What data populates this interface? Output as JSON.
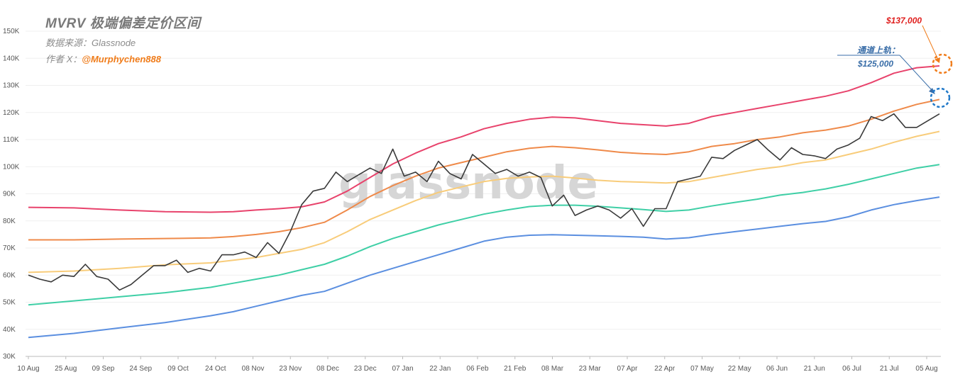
{
  "header": {
    "title": "MVRV 极端偏差定价区间",
    "source_label": "数据来源：Glassnode",
    "author_prefix": "作者 X：",
    "author_handle": "@Murphychen888"
  },
  "watermark": "glassnode",
  "annotations": {
    "upper_target": "$137,000",
    "channel_label": "通道上轨：",
    "channel_value": "$125,000"
  },
  "colors": {
    "price": "#3a3a3a",
    "band_top": "#e8436c",
    "band_upper": "#ef8a4a",
    "band_mid": "#f8cc7a",
    "band_lower": "#3fcfa6",
    "band_bottom": "#5b8fe0",
    "ring_orange": "#f07c1a",
    "ring_blue": "#1f78c8",
    "annotation_red": "#e0201f",
    "annotation_blue": "#3a6ea8"
  },
  "chart_data": {
    "type": "line",
    "y_ticks": [
      "30K",
      "40K",
      "50K",
      "60K",
      "70K",
      "80K",
      "90K",
      "100K",
      "110K",
      "120K",
      "130K",
      "140K",
      "150K"
    ],
    "x_ticks": [
      "10 Aug",
      "25 Aug",
      "09 Sep",
      "24 Sep",
      "09 Oct",
      "24 Oct",
      "08 Nov",
      "23 Nov",
      "08 Dec",
      "23 Dec",
      "07 Jan",
      "22 Jan",
      "06 Feb",
      "21 Feb",
      "08 Mar",
      "23 Mar",
      "07 Apr",
      "22 Apr",
      "07 May",
      "22 May",
      "06 Jun",
      "21 Jun",
      "06 Jul",
      "21 Jul",
      "05 Aug"
    ],
    "ylim": [
      30000,
      150000
    ],
    "grid": true,
    "series": [
      {
        "name": "band_top",
        "color_key": "band_top",
        "points": [
          [
            0,
            85000
          ],
          [
            2,
            84800
          ],
          [
            4,
            84000
          ],
          [
            6,
            83400
          ],
          [
            8,
            83200
          ],
          [
            9,
            83400
          ],
          [
            10,
            84000
          ],
          [
            11,
            84500
          ],
          [
            12,
            85200
          ],
          [
            13,
            87000
          ],
          [
            14,
            91000
          ],
          [
            15,
            96000
          ],
          [
            16,
            101000
          ],
          [
            17,
            105000
          ],
          [
            18,
            108500
          ],
          [
            19,
            111000
          ],
          [
            20,
            114000
          ],
          [
            21,
            116000
          ],
          [
            22,
            117500
          ],
          [
            23,
            118300
          ],
          [
            24,
            118000
          ],
          [
            25,
            117000
          ],
          [
            26,
            116000
          ],
          [
            27,
            115500
          ],
          [
            28,
            115000
          ],
          [
            29,
            116000
          ],
          [
            30,
            118500
          ],
          [
            31,
            120000
          ],
          [
            32,
            121500
          ],
          [
            33,
            123000
          ],
          [
            34,
            124500
          ],
          [
            35,
            126000
          ],
          [
            36,
            128000
          ],
          [
            37,
            131000
          ],
          [
            38,
            134500
          ],
          [
            39,
            136500
          ],
          [
            40,
            137200
          ]
        ]
      },
      {
        "name": "band_upper",
        "color_key": "band_upper",
        "points": [
          [
            0,
            73000
          ],
          [
            2,
            73000
          ],
          [
            4,
            73300
          ],
          [
            6,
            73500
          ],
          [
            8,
            73700
          ],
          [
            9,
            74200
          ],
          [
            10,
            75000
          ],
          [
            11,
            76000
          ],
          [
            12,
            77500
          ],
          [
            13,
            79500
          ],
          [
            14,
            84000
          ],
          [
            15,
            89000
          ],
          [
            16,
            93000
          ],
          [
            17,
            96500
          ],
          [
            18,
            99500
          ],
          [
            19,
            101500
          ],
          [
            20,
            103500
          ],
          [
            21,
            105500
          ],
          [
            22,
            106800
          ],
          [
            23,
            107500
          ],
          [
            24,
            107000
          ],
          [
            25,
            106200
          ],
          [
            26,
            105300
          ],
          [
            27,
            104800
          ],
          [
            28,
            104500
          ],
          [
            29,
            105500
          ],
          [
            30,
            107500
          ],
          [
            31,
            108500
          ],
          [
            32,
            110000
          ],
          [
            33,
            111000
          ],
          [
            34,
            112500
          ],
          [
            35,
            113500
          ],
          [
            36,
            115000
          ],
          [
            37,
            117500
          ],
          [
            38,
            120500
          ],
          [
            39,
            123000
          ],
          [
            40,
            124800
          ]
        ]
      },
      {
        "name": "band_mid",
        "color_key": "band_mid",
        "points": [
          [
            0,
            61000
          ],
          [
            2,
            61500
          ],
          [
            4,
            62500
          ],
          [
            6,
            63800
          ],
          [
            8,
            64500
          ],
          [
            9,
            65500
          ],
          [
            10,
            66500
          ],
          [
            11,
            68000
          ],
          [
            12,
            69500
          ],
          [
            13,
            72000
          ],
          [
            14,
            76000
          ],
          [
            15,
            80500
          ],
          [
            16,
            84000
          ],
          [
            17,
            87500
          ],
          [
            18,
            90500
          ],
          [
            19,
            92500
          ],
          [
            20,
            94500
          ],
          [
            21,
            95700
          ],
          [
            22,
            96200
          ],
          [
            23,
            96500
          ],
          [
            24,
            95800
          ],
          [
            25,
            95000
          ],
          [
            26,
            94500
          ],
          [
            27,
            94300
          ],
          [
            28,
            94000
          ],
          [
            29,
            94500
          ],
          [
            30,
            96000
          ],
          [
            31,
            97500
          ],
          [
            32,
            99000
          ],
          [
            33,
            100000
          ],
          [
            34,
            101500
          ],
          [
            35,
            102500
          ],
          [
            36,
            104500
          ],
          [
            37,
            106500
          ],
          [
            38,
            109000
          ],
          [
            39,
            111200
          ],
          [
            40,
            113000
          ]
        ]
      },
      {
        "name": "band_lower",
        "color_key": "band_lower",
        "points": [
          [
            0,
            49000
          ],
          [
            2,
            50500
          ],
          [
            4,
            52000
          ],
          [
            6,
            53500
          ],
          [
            8,
            55500
          ],
          [
            9,
            57000
          ],
          [
            10,
            58500
          ],
          [
            11,
            60000
          ],
          [
            12,
            62000
          ],
          [
            13,
            64000
          ],
          [
            14,
            67000
          ],
          [
            15,
            70500
          ],
          [
            16,
            73500
          ],
          [
            17,
            76000
          ],
          [
            18,
            78500
          ],
          [
            19,
            80500
          ],
          [
            20,
            82500
          ],
          [
            21,
            84000
          ],
          [
            22,
            85300
          ],
          [
            23,
            85800
          ],
          [
            24,
            85800
          ],
          [
            25,
            85400
          ],
          [
            26,
            84800
          ],
          [
            27,
            84200
          ],
          [
            28,
            83500
          ],
          [
            29,
            84000
          ],
          [
            30,
            85500
          ],
          [
            31,
            86800
          ],
          [
            32,
            88000
          ],
          [
            33,
            89500
          ],
          [
            34,
            90500
          ],
          [
            35,
            91800
          ],
          [
            36,
            93500
          ],
          [
            37,
            95500
          ],
          [
            38,
            97500
          ],
          [
            39,
            99500
          ],
          [
            40,
            100800
          ]
        ]
      },
      {
        "name": "band_bottom",
        "color_key": "band_bottom",
        "points": [
          [
            0,
            37000
          ],
          [
            2,
            38500
          ],
          [
            4,
            40500
          ],
          [
            6,
            42500
          ],
          [
            8,
            45000
          ],
          [
            9,
            46500
          ],
          [
            10,
            48500
          ],
          [
            11,
            50500
          ],
          [
            12,
            52500
          ],
          [
            13,
            54000
          ],
          [
            14,
            57000
          ],
          [
            15,
            60000
          ],
          [
            16,
            62500
          ],
          [
            17,
            65000
          ],
          [
            18,
            67500
          ],
          [
            19,
            70000
          ],
          [
            20,
            72500
          ],
          [
            21,
            74000
          ],
          [
            22,
            74700
          ],
          [
            23,
            74900
          ],
          [
            24,
            74700
          ],
          [
            25,
            74500
          ],
          [
            26,
            74300
          ],
          [
            27,
            74000
          ],
          [
            28,
            73300
          ],
          [
            29,
            73800
          ],
          [
            30,
            75000
          ],
          [
            31,
            76000
          ],
          [
            32,
            77000
          ],
          [
            33,
            78000
          ],
          [
            34,
            79000
          ],
          [
            35,
            79800
          ],
          [
            36,
            81500
          ],
          [
            37,
            84000
          ],
          [
            38,
            86000
          ],
          [
            39,
            87500
          ],
          [
            40,
            88800
          ]
        ]
      },
      {
        "name": "price",
        "color_key": "price",
        "points": [
          [
            0,
            60000
          ],
          [
            0.5,
            58500
          ],
          [
            1,
            57500
          ],
          [
            1.5,
            60000
          ],
          [
            2,
            59500
          ],
          [
            2.5,
            64000
          ],
          [
            3,
            59500
          ],
          [
            3.5,
            58500
          ],
          [
            4,
            54500
          ],
          [
            4.5,
            56500
          ],
          [
            5,
            60000
          ],
          [
            5.5,
            63500
          ],
          [
            6,
            63500
          ],
          [
            6.5,
            65500
          ],
          [
            7,
            61000
          ],
          [
            7.5,
            62500
          ],
          [
            8,
            61500
          ],
          [
            8.5,
            67500
          ],
          [
            9,
            67500
          ],
          [
            9.5,
            68500
          ],
          [
            10,
            66500
          ],
          [
            10.5,
            72000
          ],
          [
            11,
            68000
          ],
          [
            11.5,
            76000
          ],
          [
            12,
            86000
          ],
          [
            12.5,
            91000
          ],
          [
            13,
            92000
          ],
          [
            13.5,
            98000
          ],
          [
            14,
            94500
          ],
          [
            14.5,
            97000
          ],
          [
            15,
            99500
          ],
          [
            15.5,
            97500
          ],
          [
            16,
            106500
          ],
          [
            16.5,
            96500
          ],
          [
            17,
            98000
          ],
          [
            17.5,
            94500
          ],
          [
            18,
            102000
          ],
          [
            18.5,
            97500
          ],
          [
            19,
            95500
          ],
          [
            19.5,
            104500
          ],
          [
            20,
            101000
          ],
          [
            20.5,
            97500
          ],
          [
            21,
            99000
          ],
          [
            21.5,
            96500
          ],
          [
            22,
            98000
          ],
          [
            22.5,
            96000
          ],
          [
            23,
            85500
          ],
          [
            23.5,
            89500
          ],
          [
            24,
            82000
          ],
          [
            24.5,
            84000
          ],
          [
            25,
            85500
          ],
          [
            25.5,
            84000
          ],
          [
            26,
            81000
          ],
          [
            26.5,
            84500
          ],
          [
            27,
            78000
          ],
          [
            27.5,
            84500
          ],
          [
            28,
            84500
          ],
          [
            28.5,
            94500
          ],
          [
            29,
            95500
          ],
          [
            29.5,
            96500
          ],
          [
            30,
            103500
          ],
          [
            30.5,
            103000
          ],
          [
            31,
            106000
          ],
          [
            31.5,
            108000
          ],
          [
            32,
            110000
          ],
          [
            32.5,
            106000
          ],
          [
            33,
            102500
          ],
          [
            33.5,
            107000
          ],
          [
            34,
            104500
          ],
          [
            34.5,
            104000
          ],
          [
            35,
            103000
          ],
          [
            35.5,
            106500
          ],
          [
            36,
            108000
          ],
          [
            36.5,
            110500
          ],
          [
            37,
            118500
          ],
          [
            37.5,
            117000
          ],
          [
            38,
            119500
          ],
          [
            38.5,
            114500
          ],
          [
            39,
            114500
          ],
          [
            39.5,
            117000
          ],
          [
            40,
            119500
          ]
        ]
      }
    ]
  }
}
